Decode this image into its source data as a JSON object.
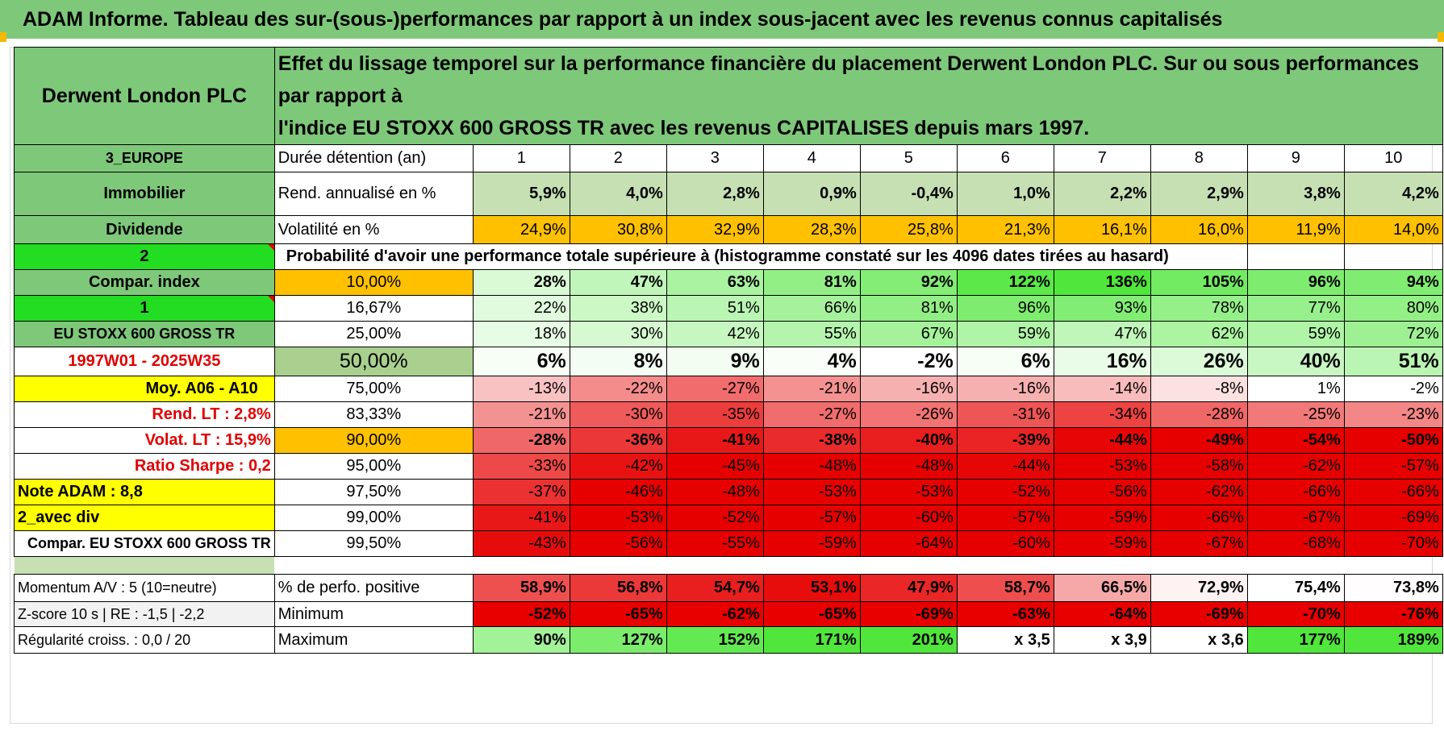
{
  "title": "ADAM Informe. Tableau des sur-(sous-)performances par rapport à un index sous-jacent avec les revenus connus capitalisés",
  "header": {
    "name": "Derwent London PLC",
    "desc1": "Effet du lissage temporel sur la performance financière du placement Derwent London PLC. Sur ou sous performances par rapport à",
    "desc2": "l'indice EU STOXX 600 GROSS TR avec les revenus CAPITALISES depuis mars 1997."
  },
  "side": {
    "region": "3_EUROPE",
    "sector": "Immobilier",
    "type": "Dividende",
    "n2": "2",
    "compar": "Compar. index",
    "n1": "1",
    "index": "EU STOXX 600 GROSS TR",
    "period": "1997W01 - 2025W35",
    "moy": "Moy. A06 - A10",
    "rend_lt": "Rend. LT :   2,8%",
    "volat_lt": "Volat. LT :   15,9%",
    "sharpe": "Ratio Sharpe :    0,2",
    "note": "Note ADAM : 8,8",
    "div": "2_avec div",
    "compar_full": "Compar. EU STOXX 600 GROSS TR",
    "momentum": "Momentum A/V : 5 (10=neutre)",
    "zscore": "Z-score 10 s | RE : -1,5 | -2,2",
    "regul": "Régularité croiss. : 0,0 / 20"
  },
  "labels": {
    "duree": "Durée détention (an)",
    "rend": "Rend. annualisé en %",
    "vol": "Volatilité en %",
    "proba": "Probabilité d'avoir une performance totale supérieure à (histogramme constaté sur les 4096 dates tirées au hasard)",
    "perfo_pos": "% de perfo. positive",
    "minimum": "Minimum",
    "maximum": "Maximum"
  },
  "years": [
    "1",
    "2",
    "3",
    "4",
    "5",
    "6",
    "7",
    "8",
    "9",
    "10"
  ],
  "rend": [
    "5,9%",
    "4,0%",
    "2,8%",
    "0,9%",
    "-0,4%",
    "1,0%",
    "2,2%",
    "2,9%",
    "3,8%",
    "4,2%"
  ],
  "vol": [
    "24,9%",
    "30,8%",
    "32,9%",
    "28,3%",
    "25,8%",
    "21,3%",
    "16,1%",
    "16,0%",
    "11,9%",
    "14,0%"
  ],
  "quantiles": [
    {
      "q": "10,00%",
      "v": [
        "28%",
        "47%",
        "63%",
        "81%",
        "92%",
        "122%",
        "136%",
        "105%",
        "96%",
        "94%"
      ]
    },
    {
      "q": "16,67%",
      "v": [
        "22%",
        "38%",
        "51%",
        "66%",
        "81%",
        "96%",
        "93%",
        "78%",
        "77%",
        "80%"
      ]
    },
    {
      "q": "25,00%",
      "v": [
        "18%",
        "30%",
        "42%",
        "55%",
        "67%",
        "59%",
        "47%",
        "62%",
        "59%",
        "72%"
      ]
    },
    {
      "q": "50,00%",
      "v": [
        "6%",
        "8%",
        "9%",
        "4%",
        "-2%",
        "6%",
        "16%",
        "26%",
        "40%",
        "51%"
      ]
    },
    {
      "q": "75,00%",
      "v": [
        "-13%",
        "-22%",
        "-27%",
        "-21%",
        "-16%",
        "-16%",
        "-14%",
        "-8%",
        "1%",
        "-2%"
      ]
    },
    {
      "q": "83,33%",
      "v": [
        "-21%",
        "-30%",
        "-35%",
        "-27%",
        "-26%",
        "-31%",
        "-34%",
        "-28%",
        "-25%",
        "-23%"
      ]
    },
    {
      "q": "90,00%",
      "v": [
        "-28%",
        "-36%",
        "-41%",
        "-38%",
        "-40%",
        "-39%",
        "-44%",
        "-49%",
        "-54%",
        "-50%"
      ]
    },
    {
      "q": "95,00%",
      "v": [
        "-33%",
        "-42%",
        "-45%",
        "-48%",
        "-48%",
        "-44%",
        "-53%",
        "-58%",
        "-62%",
        "-57%"
      ]
    },
    {
      "q": "97,50%",
      "v": [
        "-37%",
        "-46%",
        "-48%",
        "-53%",
        "-53%",
        "-52%",
        "-56%",
        "-62%",
        "-66%",
        "-66%"
      ]
    },
    {
      "q": "99,00%",
      "v": [
        "-41%",
        "-53%",
        "-52%",
        "-57%",
        "-60%",
        "-57%",
        "-59%",
        "-66%",
        "-67%",
        "-69%"
      ]
    },
    {
      "q": "99,50%",
      "v": [
        "-43%",
        "-56%",
        "-55%",
        "-59%",
        "-64%",
        "-60%",
        "-59%",
        "-67%",
        "-68%",
        "-70%"
      ]
    }
  ],
  "perfo_pos": [
    "58,9%",
    "56,8%",
    "54,7%",
    "53,1%",
    "47,9%",
    "58,7%",
    "66,5%",
    "72,9%",
    "75,4%",
    "73,8%"
  ],
  "minimum": [
    "-52%",
    "-65%",
    "-62%",
    "-65%",
    "-69%",
    "-63%",
    "-64%",
    "-69%",
    "-70%",
    "-76%"
  ],
  "maximum": [
    "90%",
    "127%",
    "152%",
    "171%",
    "201%",
    "x 3,5",
    "x 3,9",
    "x 3,6",
    "177%",
    "189%"
  ],
  "colors": {
    "banner": "#7ec87a",
    "label_green": "#7ec87a",
    "bright_green": "#22dd22",
    "yellow": "#ffff00",
    "orange": "#ffc000",
    "red_text": "#e00000"
  }
}
